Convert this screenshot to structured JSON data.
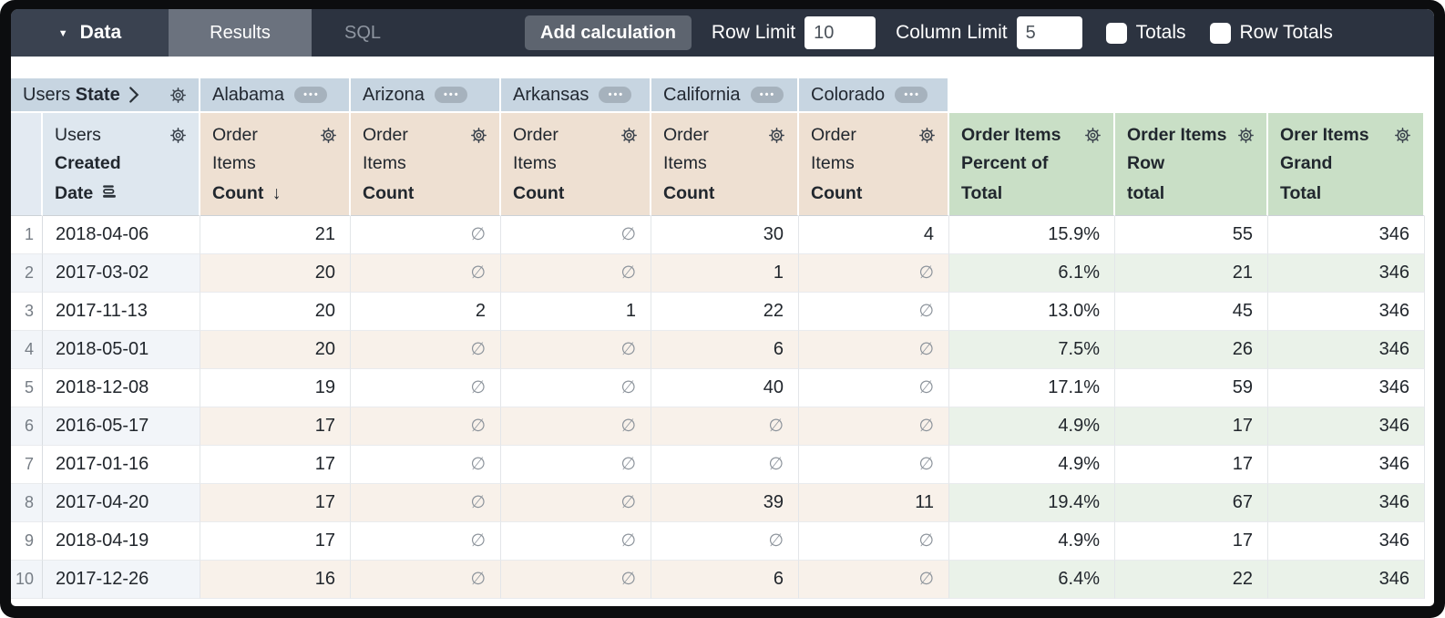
{
  "toolbar": {
    "data_label": "Data",
    "tabs": [
      {
        "label": "Results",
        "active": true
      },
      {
        "label": "SQL",
        "active": false
      }
    ],
    "add_calculation_label": "Add calculation",
    "row_limit": {
      "label": "Row Limit",
      "value": "10"
    },
    "column_limit": {
      "label": "Column Limit",
      "value": "5"
    },
    "totals": {
      "label": "Totals",
      "checked": false
    },
    "row_totals": {
      "label": "Row Totals",
      "checked": false
    }
  },
  "pivot_header": {
    "dimension_label_regular": "Users",
    "dimension_label_bold": "State",
    "values": [
      "Alabama",
      "Arizona",
      "Arkansas",
      "California",
      "Colorado"
    ]
  },
  "column_headers": {
    "row_dimension": {
      "line1": "Users",
      "line2": "Created",
      "line3": "Date"
    },
    "measure": {
      "line1": "Order",
      "line2": "Items",
      "line3": "Count",
      "sorted_column_index": 0,
      "count": 5
    },
    "calculations": [
      {
        "line1": "Order Items",
        "line2": "Percent of",
        "line3": "Total"
      },
      {
        "line1": "Order Items",
        "line2": "Row",
        "line3": "total"
      },
      {
        "line1": "Orer Items",
        "line2": "Grand",
        "line3": "Total"
      }
    ]
  },
  "table": {
    "null_symbol": "∅",
    "rows": [
      {
        "num": "1",
        "date": "2018-04-06",
        "counts": [
          "21",
          "∅",
          "∅",
          "30",
          "4"
        ],
        "calcs": [
          "15.9%",
          "55",
          "346"
        ]
      },
      {
        "num": "2",
        "date": "2017-03-02",
        "counts": [
          "20",
          "∅",
          "∅",
          "1",
          "∅"
        ],
        "calcs": [
          "6.1%",
          "21",
          "346"
        ]
      },
      {
        "num": "3",
        "date": "2017-11-13",
        "counts": [
          "20",
          "2",
          "1",
          "22",
          "∅"
        ],
        "calcs": [
          "13.0%",
          "45",
          "346"
        ]
      },
      {
        "num": "4",
        "date": "2018-05-01",
        "counts": [
          "20",
          "∅",
          "∅",
          "6",
          "∅"
        ],
        "calcs": [
          "7.5%",
          "26",
          "346"
        ]
      },
      {
        "num": "5",
        "date": "2018-12-08",
        "counts": [
          "19",
          "∅",
          "∅",
          "40",
          "∅"
        ],
        "calcs": [
          "17.1%",
          "59",
          "346"
        ]
      },
      {
        "num": "6",
        "date": "2016-05-17",
        "counts": [
          "17",
          "∅",
          "∅",
          "∅",
          "∅"
        ],
        "calcs": [
          "4.9%",
          "17",
          "346"
        ]
      },
      {
        "num": "7",
        "date": "2017-01-16",
        "counts": [
          "17",
          "∅",
          "∅",
          "∅",
          "∅"
        ],
        "calcs": [
          "4.9%",
          "17",
          "346"
        ]
      },
      {
        "num": "8",
        "date": "2017-04-20",
        "counts": [
          "17",
          "∅",
          "∅",
          "39",
          "11"
        ],
        "calcs": [
          "19.4%",
          "67",
          "346"
        ]
      },
      {
        "num": "9",
        "date": "2018-04-19",
        "counts": [
          "17",
          "∅",
          "∅",
          "∅",
          "∅"
        ],
        "calcs": [
          "4.9%",
          "17",
          "346"
        ]
      },
      {
        "num": "10",
        "date": "2017-12-26",
        "counts": [
          "16",
          "∅",
          "∅",
          "6",
          "∅"
        ],
        "calcs": [
          "6.4%",
          "22",
          "346"
        ]
      }
    ]
  },
  "icons": {
    "caret_down": "▼",
    "chevron_right": "chevron-right-icon",
    "gear": "gear-icon",
    "ellipsis_glyph": "•••",
    "sort_arrow": "↓",
    "date_granularity": "stacked-bars"
  },
  "colors": {
    "topbar_bg": "#2c3340",
    "data_tab_bg": "#3a4250",
    "results_tab_bg": "#6b727e",
    "pivot_header_bg": "#c7d5e1",
    "dimension_header_bg": "#dee7ef",
    "measure_header_bg": "#eee0d2",
    "calc_header_bg": "#c9dfc6",
    "even_row_dim": "#f2f5f9",
    "even_row_measure": "#f8f1ea",
    "even_row_calc": "#eaf2e9"
  }
}
